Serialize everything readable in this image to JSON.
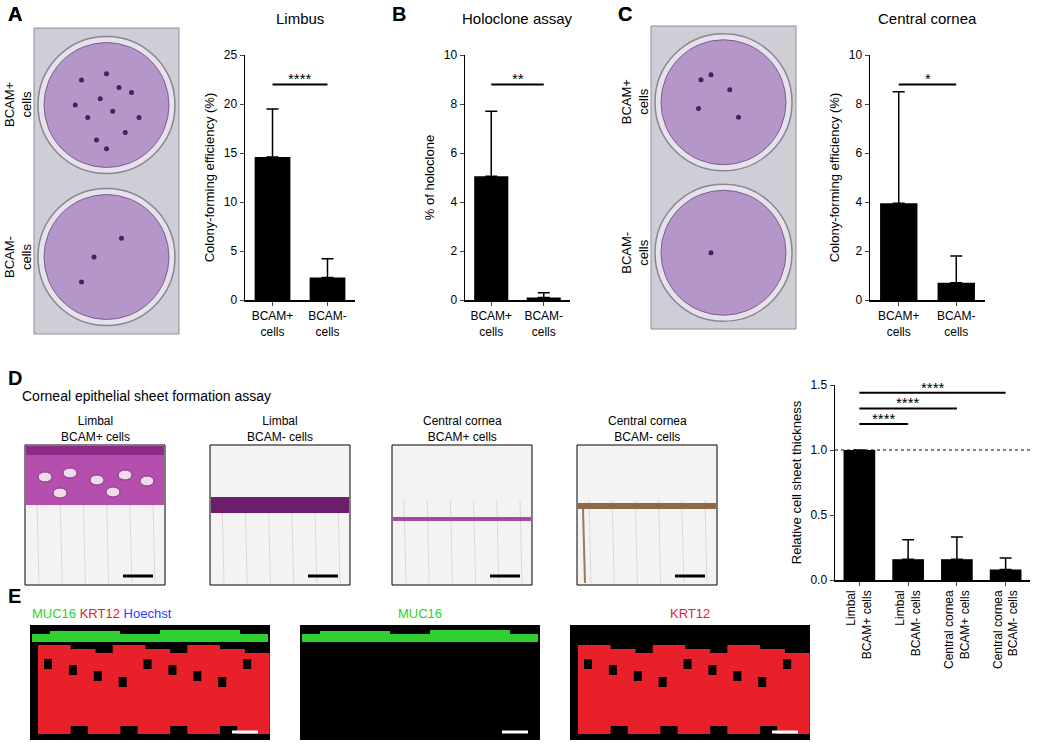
{
  "chart_data": [
    {
      "panel": "A",
      "type": "bar",
      "title": "Limbus",
      "y_label": "Colony-forming efficiency (%)",
      "categories": [
        "BCAM+ cells",
        "BCAM- cells"
      ],
      "values": [
        14.6,
        2.3
      ],
      "errors": [
        4.9,
        1.9
      ],
      "color": "#000000",
      "ylim": [
        0,
        25
      ],
      "yticks": [
        0,
        5,
        10,
        15,
        20,
        25
      ],
      "grid": false,
      "significance": [
        {
          "between": [
            "BCAM+ cells",
            "BCAM- cells"
          ],
          "label": "****"
        }
      ]
    },
    {
      "panel": "B",
      "type": "bar",
      "title": "Holoclone assay",
      "y_label": "% of holoclone",
      "categories": [
        "BCAM+ cells",
        "BCAM- cells"
      ],
      "values": [
        5.05,
        0.1
      ],
      "errors": [
        2.65,
        0.2
      ],
      "color": "#000000",
      "ylim": [
        0,
        10
      ],
      "yticks": [
        0,
        2,
        4,
        6,
        8,
        10
      ],
      "grid": false,
      "significance": [
        {
          "between": [
            "BCAM+ cells",
            "BCAM- cells"
          ],
          "label": "**"
        }
      ]
    },
    {
      "panel": "C",
      "type": "bar",
      "title": "Central cornea",
      "y_label": "Colony-forming efficiency (%)",
      "categories": [
        "BCAM+ cells",
        "BCAM- cells"
      ],
      "values": [
        3.95,
        0.7
      ],
      "errors": [
        4.55,
        1.1
      ],
      "color": "#000000",
      "ylim": [
        0,
        10
      ],
      "yticks": [
        0,
        2,
        4,
        6,
        8,
        10
      ],
      "grid": false,
      "significance": [
        {
          "between": [
            "BCAM+ cells",
            "BCAM- cells"
          ],
          "label": "*"
        }
      ]
    },
    {
      "type": "bar",
      "y_label": "Relative cell sheet thickness",
      "categories": [
        "Limbal BCAM+ cells",
        "Limbal BCAM- cells",
        "Central cornea BCAM+ cells",
        "Central cornea BCAM- cells"
      ],
      "values": [
        1.0,
        0.16,
        0.16,
        0.08
      ],
      "errors": [
        0,
        0.15,
        0.17,
        0.09
      ],
      "color": "#000000",
      "ylim": [
        0,
        1.5
      ],
      "yticks": [
        {
          "value": 0,
          "label": "0.0"
        },
        0.5,
        {
          "value": 1,
          "label": "1.0"
        },
        1.5
      ],
      "grid": false,
      "reference_line": 1,
      "significance": [
        {
          "between": [
            "Limbal BCAM+ cells",
            "Limbal BCAM- cells"
          ],
          "label": "****"
        },
        {
          "between": [
            "Limbal BCAM+ cells",
            "Central cornea BCAM+ cells"
          ],
          "label": "****"
        },
        {
          "between": [
            "Limbal BCAM+ cells",
            "Central cornea BCAM- cells"
          ],
          "label": "****"
        }
      ]
    }
  ],
  "dish_images": [
    {
      "panel": "A",
      "labels": [
        "BCAM+ cells",
        "BCAM- cells"
      ]
    },
    {
      "panel": "C",
      "labels": [
        "BCAM+ cells",
        "BCAM- cells"
      ]
    }
  ],
  "sheet_assay": {
    "panel": "D",
    "title": "Corneal epithelial sheet formation assay",
    "images": [
      "Limbal BCAM+ cells",
      "Limbal BCAM- cells",
      "Central cornea BCAM+ cells",
      "Central cornea BCAM- cells"
    ]
  },
  "immunostaining": {
    "panel": "E",
    "images": [
      {
        "channels": [
          {
            "text": "MUC16",
            "color": "#2fcf2f"
          },
          {
            "text": "KRT12",
            "color": "#e8202a"
          },
          {
            "text": "Hoechst",
            "color": "#2a3cff"
          }
        ]
      },
      {
        "channels": [
          {
            "text": "MUC16",
            "color": "#2fcf2f"
          }
        ]
      },
      {
        "channels": [
          {
            "text": "KRT12",
            "color": "#e8202a"
          }
        ]
      }
    ]
  }
}
